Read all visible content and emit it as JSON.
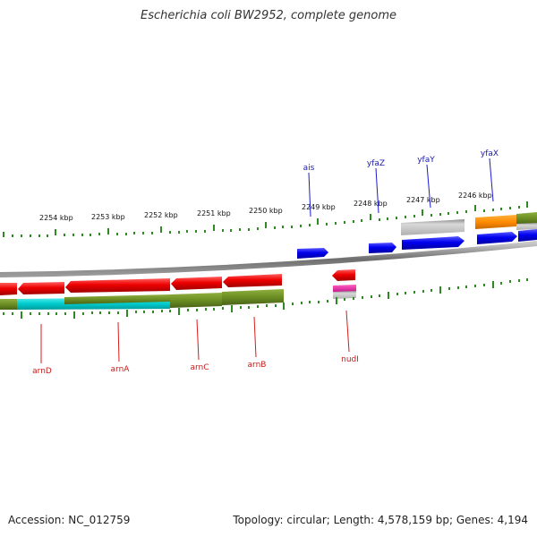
{
  "title": "Escherichia coli BW2952, complete genome",
  "footer": {
    "accession": "Accession: NC_012759",
    "summary": "Topology: circular; Length: 4,578,159 bp; Genes: 4,194"
  },
  "scale_labels": [
    "2254 kbp",
    "2253 kbp",
    "2252 kbp",
    "2251 kbp",
    "2250 kbp",
    "2249 kbp",
    "2248 kbp",
    "2247 kbp",
    "2246 kbp"
  ],
  "genes_top": [
    "ais",
    "yfaZ",
    "yfaY",
    "yfaX"
  ],
  "genes_bottom": [
    "arnD",
    "arnA",
    "arnC",
    "arnB",
    "nudI"
  ],
  "colors": {
    "forward_cds": "#0000ee",
    "reverse_cds": "#ee0000",
    "olive": "#6b8e23",
    "cyan": "#00ced1",
    "gray": "#b5b5b5",
    "orange": "#ff8c00",
    "magenta": "#e0209a",
    "tick_green": "#2e8b22",
    "backbone": "#808080"
  }
}
